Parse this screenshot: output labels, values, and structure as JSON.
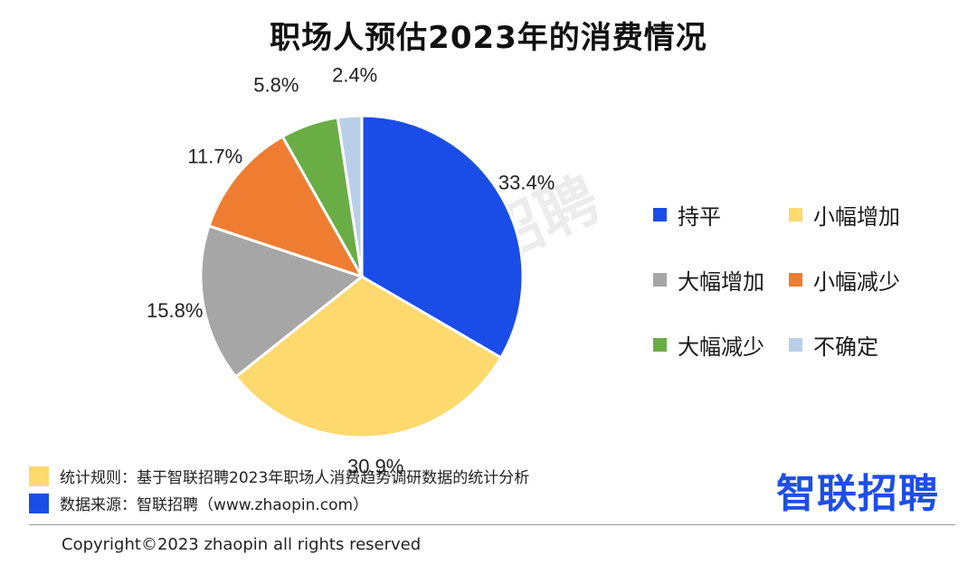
{
  "title": "职场人预估2023年的消费情况",
  "chart_data": {
    "type": "pie",
    "title": "职场人预估2023年的消费情况",
    "slices": [
      {
        "label": "持平",
        "value": 33.4,
        "display": "33.4%",
        "color": "#1a4de8"
      },
      {
        "label": "小幅增加",
        "value": 30.9,
        "display": "30.9%",
        "color": "#fdd96e"
      },
      {
        "label": "大幅增加",
        "value": 15.8,
        "display": "15.8%",
        "color": "#a6a6a6"
      },
      {
        "label": "小幅减少",
        "value": 11.7,
        "display": "11.7%",
        "color": "#ee7d31"
      },
      {
        "label": "大幅减少",
        "value": 5.8,
        "display": "5.8%",
        "color": "#6aad45"
      },
      {
        "label": "不确定",
        "value": 2.4,
        "display": "2.4%",
        "color": "#b9cfe8"
      }
    ],
    "legend_placement": "right"
  },
  "legend": {
    "items": [
      {
        "label": "持平",
        "color": "#1a4de8"
      },
      {
        "label": "小幅增加",
        "color": "#fdd96e"
      },
      {
        "label": "大幅增加",
        "color": "#a6a6a6"
      },
      {
        "label": "小幅减少",
        "color": "#ee7d31"
      },
      {
        "label": "大幅减少",
        "color": "#6aad45"
      },
      {
        "label": "不确定",
        "color": "#b9cfe8"
      }
    ]
  },
  "watermark": "智联招聘",
  "footnotes": {
    "rule": "统计规则：基于智联招聘2023年职场人消费趋势调研数据的统计分析",
    "rule_color": "#fdd96e",
    "source": "数据来源：智联招聘（www.zhaopin.com）",
    "source_color": "#1a4de8"
  },
  "logo": "智联招聘",
  "copyright": "Copyright©2023 zhaopin all rights reserved"
}
